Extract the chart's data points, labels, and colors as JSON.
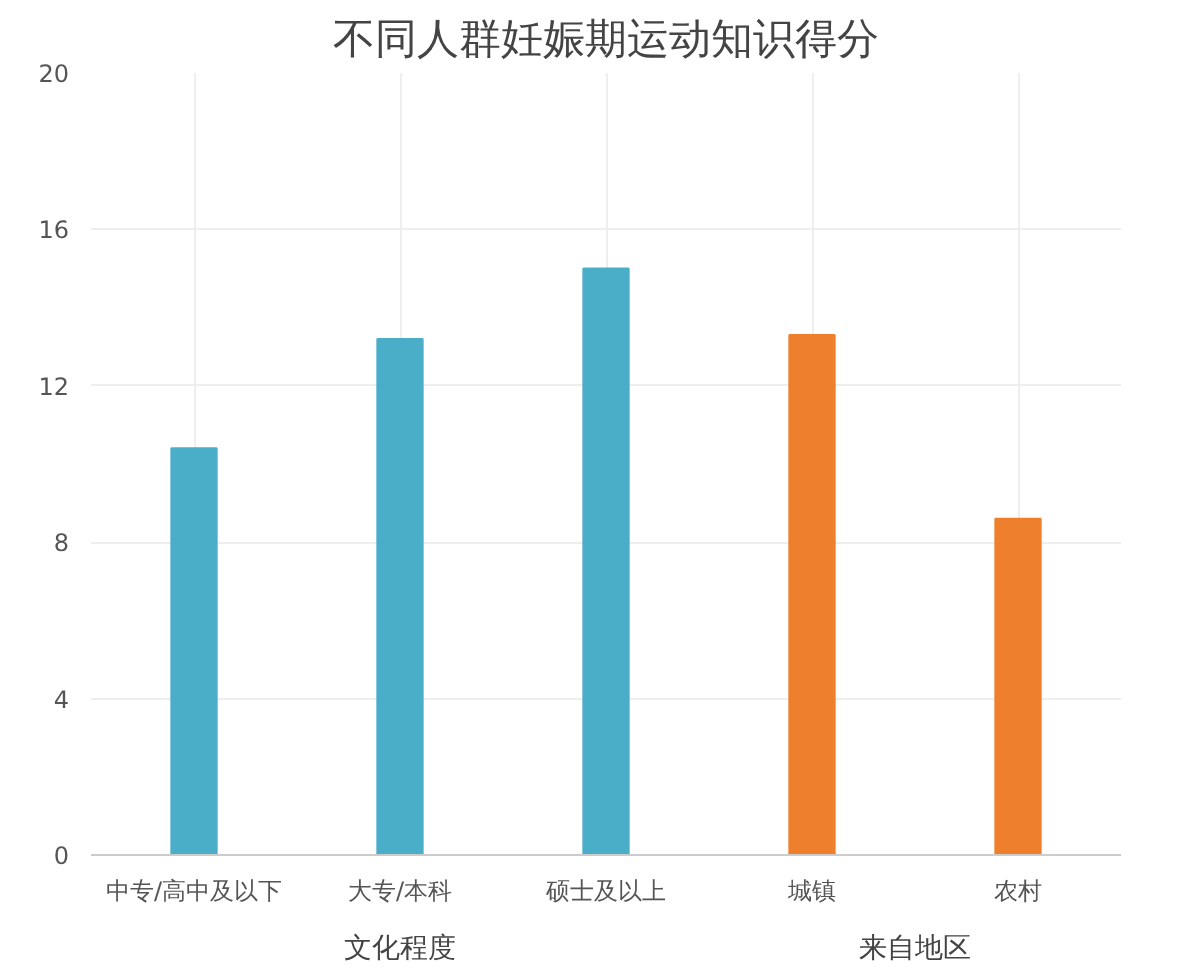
{
  "chart_data": {
    "type": "bar",
    "title": "不同人群妊娠期运动知识得分",
    "categories": [
      "中专/高中及以下",
      "大专/本科",
      "硕士及以上",
      "城镇",
      "农村"
    ],
    "values": [
      10.4,
      13.2,
      15,
      13.3,
      8.6
    ],
    "colors": [
      "#4aaec9",
      "#4aaec9",
      "#4aaec9",
      "#ee7f2d",
      "#ee7f2d"
    ],
    "annotations": [
      "文化程度",
      "来自地区"
    ],
    "ylim": [
      0,
      20
    ],
    "yticks": [
      0,
      4,
      8,
      12,
      16,
      20
    ],
    "grid": true
  }
}
